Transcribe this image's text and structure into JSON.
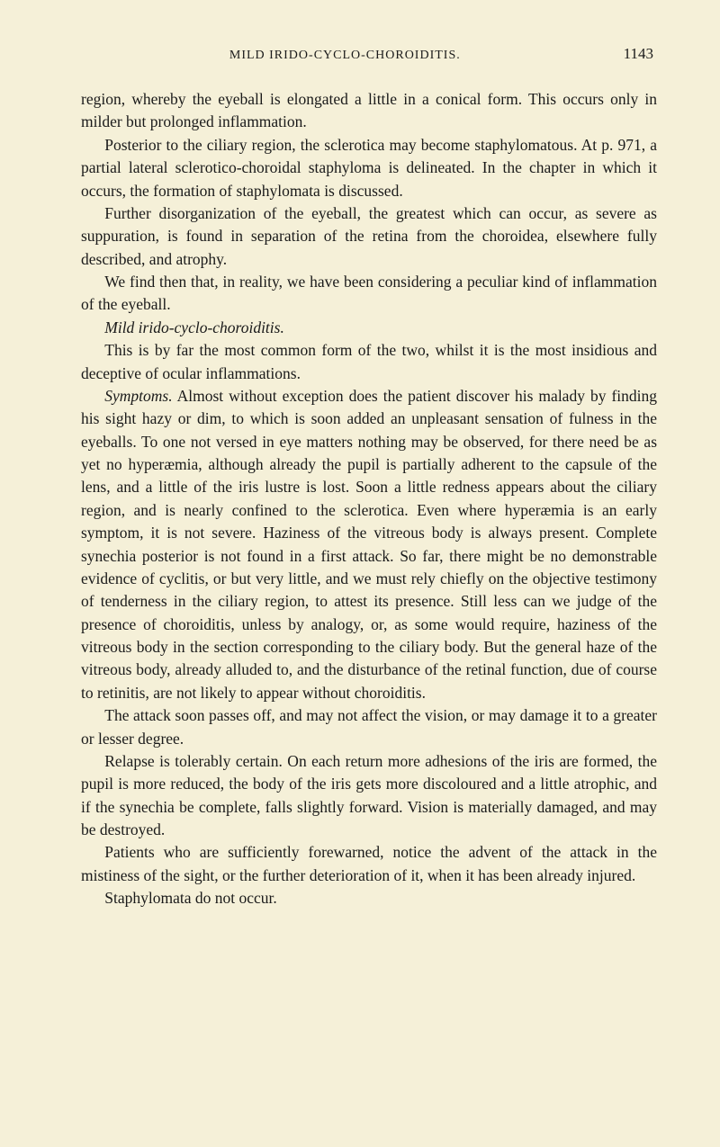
{
  "header": {
    "running_title": "MILD IRIDO-CYCLO-CHOROIDITIS.",
    "page_number": "1143"
  },
  "paragraphs": {
    "p1": "region, whereby the eyeball is elongated a little in a conical form. This occurs only in milder but prolonged inflammation.",
    "p2": "Posterior to the ciliary region, the sclerotica may become staphylo­matous. At p. 971, a partial lateral sclerotico-choroidal staphyloma is delineated. In the chapter in which it occurs, the formation of sta­phylomata is discussed.",
    "p3": "Further disorganization of the eyeball, the greatest which can occur, as severe as suppuration, is found in separation of the retina from the choroidea, elsewhere fully described, and atrophy.",
    "p4": "We find then that, in reality, we have been considering a peculiar kind of inflammation of the eyeball.",
    "p5_italic": "Mild irido-cyclo-choroiditis.",
    "p6": "This is by far the most common form of the two, whilst it is the most insidious and deceptive of ocular inflammations.",
    "p7_italic": "Symptoms.",
    "p7_rest": " Almost without exception does the patient discover his malady by finding his sight hazy or dim, to which is soon added an unpleasant sensation of fulness in the eyeballs. To one not versed in eye matters nothing may be observed, for there need be as yet no hyperæmia, although already the pupil is partially adherent to the capsule of the lens, and a little of the iris lustre is lost. Soon a little redness appears about the ciliary region, and is nearly con­fined to the sclerotica. Even where hyperæmia is an early symptom, it is not severe. Haziness of the vitreous body is always present. Complete synechia posterior is not found in a first attack. So far, there might be no demonstrable evidence of cyclitis, or but very little, and we must rely chiefly on the objective testimony of tender­ness in the ciliary region, to attest its presence. Still less can we judge of the presence of choroiditis, unless by analogy, or, as some would require, haziness of the vitreous body in the section corre­sponding to the ciliary body. But the general haze of the vitreous body, already alluded to, and the disturbance of the retinal function, due of course to retinitis, are not likely to appear without choroiditis.",
    "p8": "The attack soon passes off, and may not affect the vision, or may damage it to a greater or lesser degree.",
    "p9": "Relapse is tolerably certain. On each return more adhesions of the iris are formed, the pupil is more reduced, the body of the iris gets more discoloured and a little atrophic, and if the synechia be complete, falls slightly forward. Vision is materially damaged, and may be destroyed.",
    "p10": "Patients who are sufficiently forewarned, notice the advent of the attack in the mistiness of the sight, or the further deterioration of it, when it has been already injured.",
    "p11": "Staphylomata do not occur."
  }
}
